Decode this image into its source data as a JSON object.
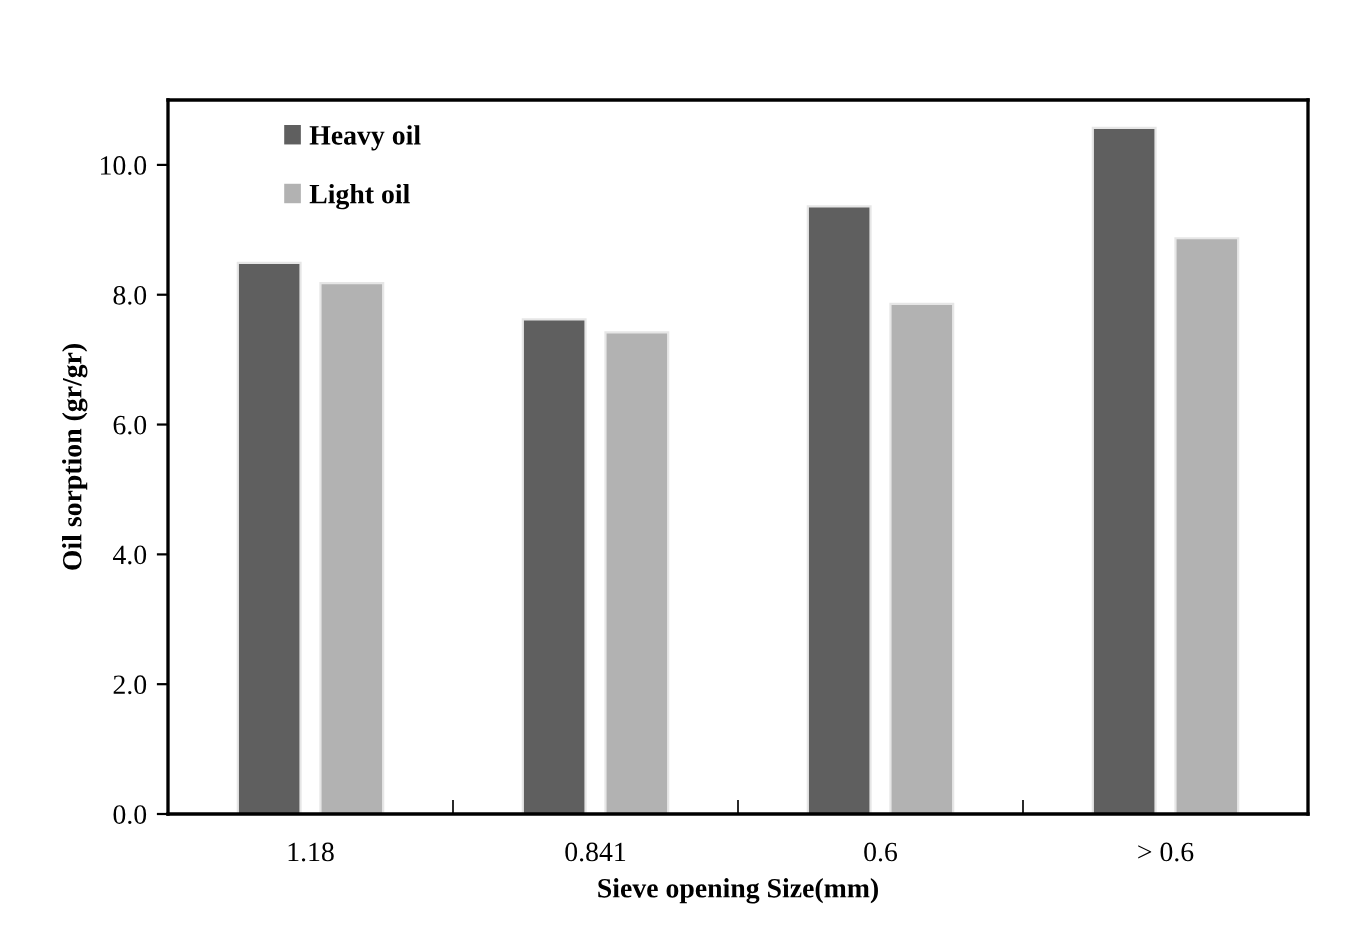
{
  "chart_data": {
    "type": "bar",
    "xlabel": "Sieve opening Size(mm)",
    "ylabel": "Oil sorption (gr/gr)",
    "categories": [
      "1.18",
      "0.841",
      "0.6",
      "> 0.6"
    ],
    "series": [
      {
        "name": "Heavy oil",
        "color": "#5f5f5f",
        "values": [
          8.49,
          7.62,
          9.36,
          10.57
        ]
      },
      {
        "name": "Light oil",
        "color": "#b2b2b2",
        "values": [
          8.18,
          7.42,
          7.86,
          8.87
        ]
      }
    ],
    "ylim": [
      0,
      11
    ],
    "yticks": [
      {
        "value": 0,
        "label": "0.0"
      },
      {
        "value": 2,
        "label": "2.0"
      },
      {
        "value": 4,
        "label": "4.0"
      },
      {
        "value": 6,
        "label": "6.0"
      },
      {
        "value": 8,
        "label": "8.0"
      },
      {
        "value": 10,
        "label": "10.0"
      }
    ],
    "grid": false,
    "legend": "top left"
  }
}
